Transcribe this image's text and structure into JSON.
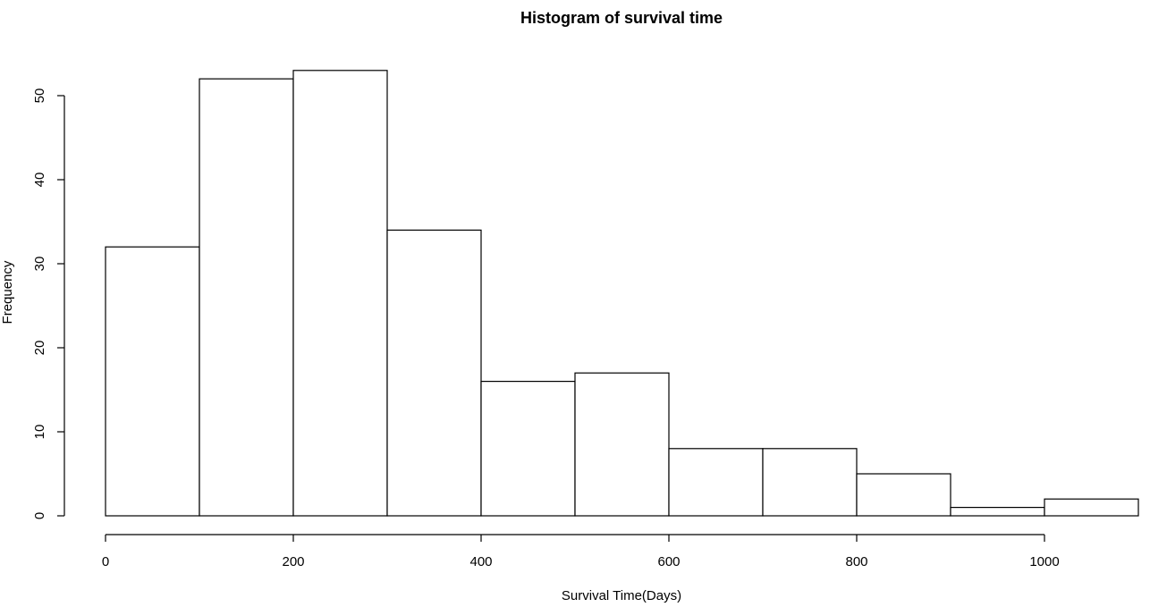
{
  "chart_data": {
    "type": "bar",
    "title": "Histogram of survival time",
    "xlabel": "Survival Time(Days)",
    "ylabel": "Frequency",
    "bin_edges": [
      0,
      100,
      200,
      300,
      400,
      500,
      600,
      700,
      800,
      900,
      1000,
      1100
    ],
    "values": [
      32,
      52,
      53,
      34,
      16,
      17,
      8,
      8,
      5,
      1,
      2
    ],
    "xticks": [
      0,
      200,
      400,
      600,
      800,
      1000
    ],
    "yticks": [
      0,
      10,
      20,
      30,
      40,
      50
    ],
    "xlim": [
      0,
      1000
    ],
    "ylim": [
      0,
      53
    ],
    "grid": false,
    "bar_fill": "#ffffff",
    "bar_stroke": "#000000"
  }
}
